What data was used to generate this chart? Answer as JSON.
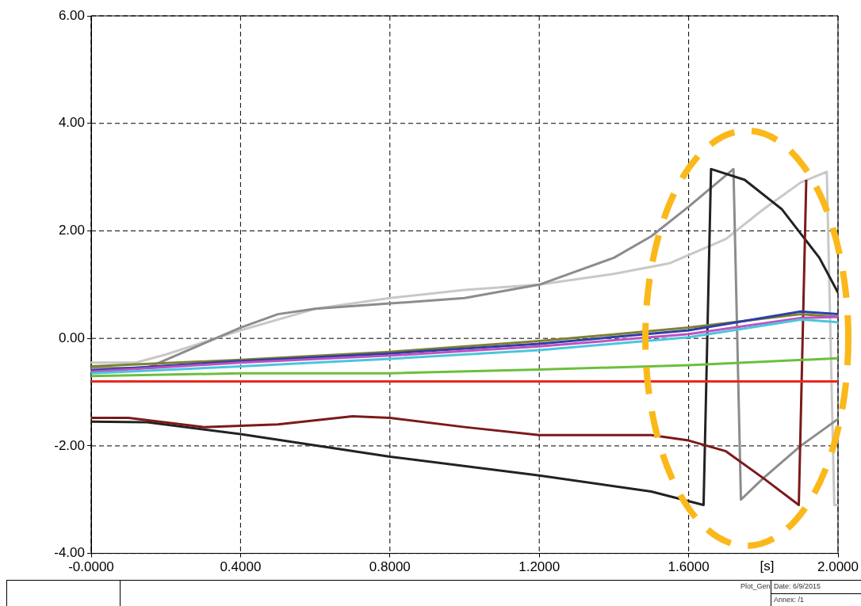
{
  "chart_data": {
    "type": "line",
    "xlabel": "[s]",
    "xlim": [
      0,
      2.0
    ],
    "ylim": [
      -4,
      6
    ],
    "xticks": [
      {
        "value": 0,
        "label": "-0.0000"
      },
      {
        "value": 0.4,
        "label": "0.4000"
      },
      {
        "value": 0.8,
        "label": "0.8000"
      },
      {
        "value": 1.2,
        "label": "1.2000"
      },
      {
        "value": 1.6,
        "label": "1.6000"
      },
      {
        "value": 2.0,
        "label": "2.0000"
      }
    ],
    "yticks": [
      {
        "value": -4,
        "label": "-4.00"
      },
      {
        "value": -2,
        "label": "-2.00"
      },
      {
        "value": 0,
        "label": "0.00"
      },
      {
        "value": 2,
        "label": "2.00"
      },
      {
        "value": 4,
        "label": "4.00"
      },
      {
        "value": 6,
        "label": "6.00"
      }
    ],
    "grid": true,
    "legend": false,
    "marker": "none",
    "line_style": "solid",
    "annotations": [
      "Plot_Gen",
      "Date: 6/9/2015",
      "Annex: /1"
    ],
    "series": [
      {
        "color": "#e8281e",
        "x": [
          0,
          2.0
        ],
        "values": [
          -0.8,
          -0.8
        ]
      },
      {
        "color": "#6cbf3c",
        "x": [
          0,
          0.4,
          0.8,
          1.2,
          1.6,
          2.0
        ],
        "values": [
          -0.7,
          -0.65,
          -0.65,
          -0.58,
          -0.5,
          -0.37
        ]
      },
      {
        "color": "#49c6dc",
        "x": [
          0,
          0.4,
          0.8,
          1.2,
          1.6,
          1.9,
          2.0
        ],
        "values": [
          -0.65,
          -0.52,
          -0.38,
          -0.22,
          0.02,
          0.35,
          0.3
        ]
      },
      {
        "color": "#c050c0",
        "x": [
          0,
          0.4,
          0.8,
          1.2,
          1.6,
          1.9,
          2.0
        ],
        "values": [
          -0.62,
          -0.45,
          -0.32,
          -0.15,
          0.08,
          0.38,
          0.4
        ]
      },
      {
        "color": "#2c3fa8",
        "x": [
          0,
          0.4,
          0.8,
          1.2,
          1.6,
          1.9,
          2.0
        ],
        "values": [
          -0.6,
          -0.42,
          -0.28,
          -0.1,
          0.15,
          0.5,
          0.45
        ]
      },
      {
        "color": "#808030",
        "x": [
          0,
          0.4,
          0.8,
          1.2,
          1.6,
          1.9,
          2.0
        ],
        "values": [
          -0.52,
          -0.4,
          -0.25,
          -0.05,
          0.2,
          0.45,
          0.4
        ]
      },
      {
        "color": "#7b1a1a",
        "x": [
          0,
          0.1,
          0.3,
          0.5,
          0.7,
          0.8,
          1.0,
          1.2,
          1.5,
          1.6,
          1.7,
          1.8,
          1.895,
          1.915
        ],
        "values": [
          -1.48,
          -1.48,
          -1.65,
          -1.6,
          -1.45,
          -1.48,
          -1.65,
          -1.8,
          -1.8,
          -1.9,
          -2.1,
          -2.6,
          -3.1,
          2.95
        ]
      },
      {
        "color": "#222222",
        "x": [
          0,
          0.15,
          0.4,
          0.8,
          1.2,
          1.5,
          1.64,
          1.66,
          1.75,
          1.85,
          1.95,
          2.0
        ],
        "values": [
          -1.55,
          -1.56,
          -1.78,
          -2.2,
          -2.55,
          -2.85,
          -3.1,
          3.15,
          2.95,
          2.4,
          1.5,
          0.85
        ]
      },
      {
        "color": "#8c8c8c",
        "x": [
          0,
          0.15,
          0.3,
          0.4,
          0.5,
          0.6,
          0.8,
          1.0,
          1.2,
          1.4,
          1.5,
          1.6,
          1.72,
          1.74,
          1.8,
          1.9,
          2.0
        ],
        "values": [
          -0.55,
          -0.55,
          -0.1,
          0.2,
          0.45,
          0.55,
          0.65,
          0.75,
          1.0,
          1.5,
          1.9,
          2.45,
          3.15,
          -3.0,
          -2.6,
          -2.0,
          -1.5
        ]
      },
      {
        "color": "#c8c8c8",
        "x": [
          0,
          0.12,
          0.2,
          0.4,
          0.6,
          0.8,
          1.0,
          1.2,
          1.4,
          1.55,
          1.7,
          1.8,
          1.9,
          1.97,
          1.99,
          2.0
        ],
        "values": [
          -0.45,
          -0.45,
          -0.3,
          0.15,
          0.55,
          0.75,
          0.9,
          1.0,
          1.2,
          1.4,
          1.85,
          2.4,
          2.9,
          3.1,
          -3.1,
          -3.1
        ]
      }
    ]
  }
}
